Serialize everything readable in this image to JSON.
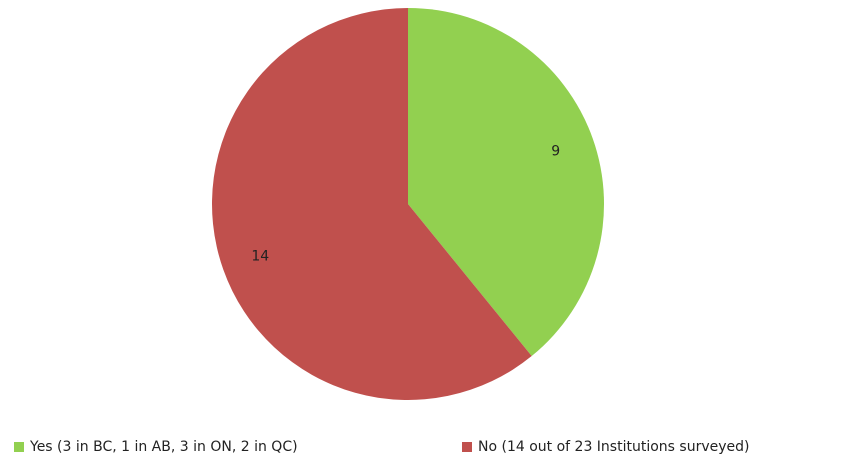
{
  "chart_data": {
    "type": "pie",
    "categories": [
      "Yes (3 in BC, 1 in AB, 3 in ON, 2 in QC)",
      "No (14 out of 23 Institutions surveyed)"
    ],
    "values": [
      9,
      14
    ],
    "colors": [
      "#92d050",
      "#c0504d"
    ],
    "legend": "bottom"
  }
}
